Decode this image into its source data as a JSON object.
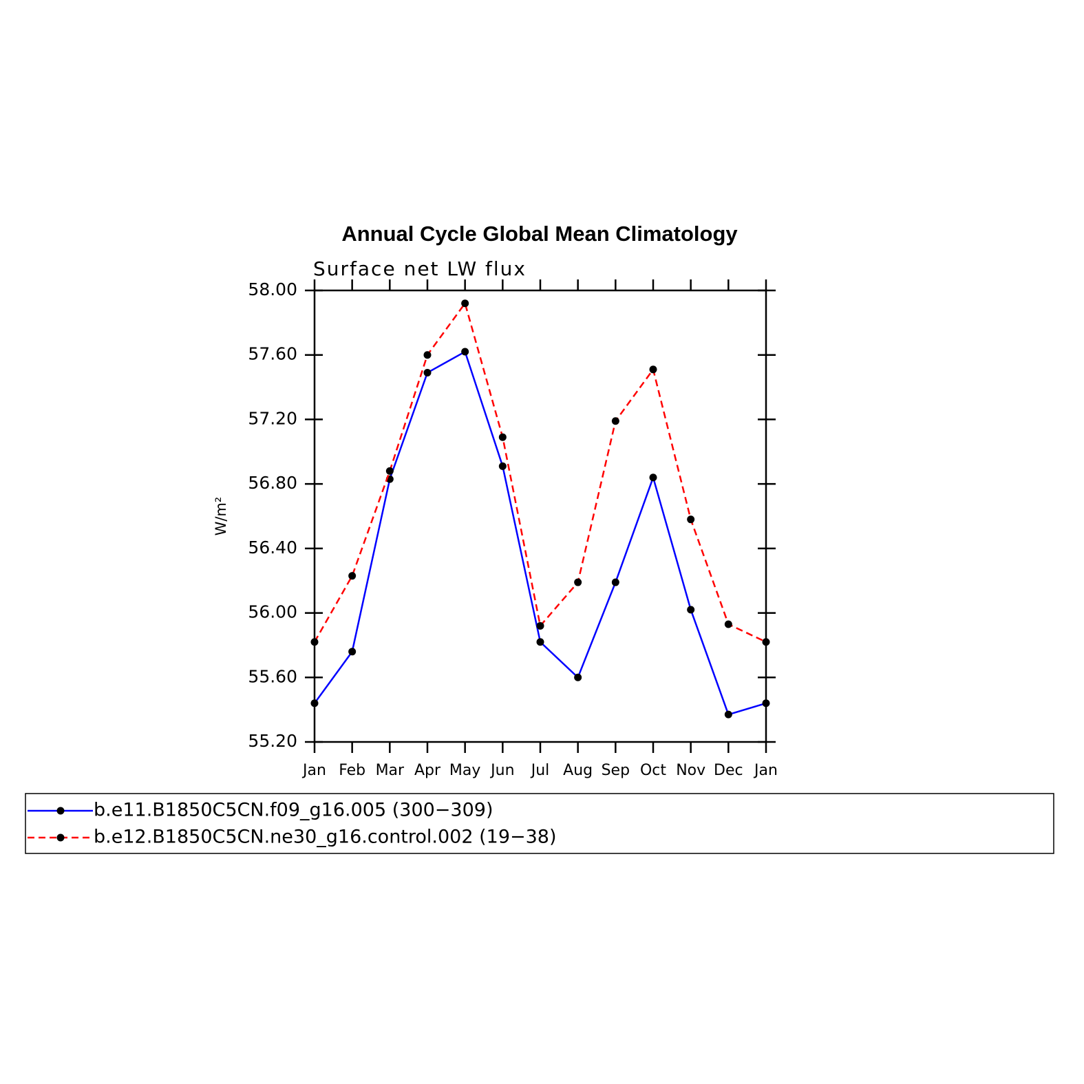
{
  "chart_data": {
    "type": "line",
    "title": "Annual Cycle Global Mean Climatology",
    "subtitle": "Surface net LW flux",
    "y_label": "W/m²",
    "categories": [
      "Jan",
      "Feb",
      "Mar",
      "Apr",
      "May",
      "Jun",
      "Jul",
      "Aug",
      "Sep",
      "Oct",
      "Nov",
      "Dec",
      "Jan"
    ],
    "series": [
      {
        "name": "b.e11.B1850C5CN.f09_g16.005 (300−309)",
        "color": "#0000ff",
        "dash": "solid",
        "values": [
          55.44,
          55.76,
          56.83,
          57.49,
          57.62,
          56.91,
          55.82,
          55.6,
          56.19,
          56.84,
          56.02,
          55.37,
          55.44
        ]
      },
      {
        "name": "b.e12.B1850C5CN.ne30_g16.control.002 (19−38)",
        "color": "#ff0000",
        "dash": "dashed",
        "values": [
          55.82,
          56.23,
          56.88,
          57.6,
          57.92,
          57.09,
          55.92,
          56.19,
          57.19,
          57.51,
          56.58,
          55.93,
          55.82
        ]
      }
    ],
    "ylim": [
      55.2,
      58.0
    ],
    "yticks": [
      {
        "value": 55.2,
        "label": "55.20"
      },
      {
        "value": 55.6,
        "label": "55.60"
      },
      {
        "value": 56.0,
        "label": "56.00"
      },
      {
        "value": 56.4,
        "label": "56.40"
      },
      {
        "value": 56.8,
        "label": "56.80"
      },
      {
        "value": 57.2,
        "label": "57.20"
      },
      {
        "value": 57.6,
        "label": "57.60"
      },
      {
        "value": 58.0,
        "label": "58.00"
      }
    ],
    "grid": false,
    "legend": "bottom"
  }
}
